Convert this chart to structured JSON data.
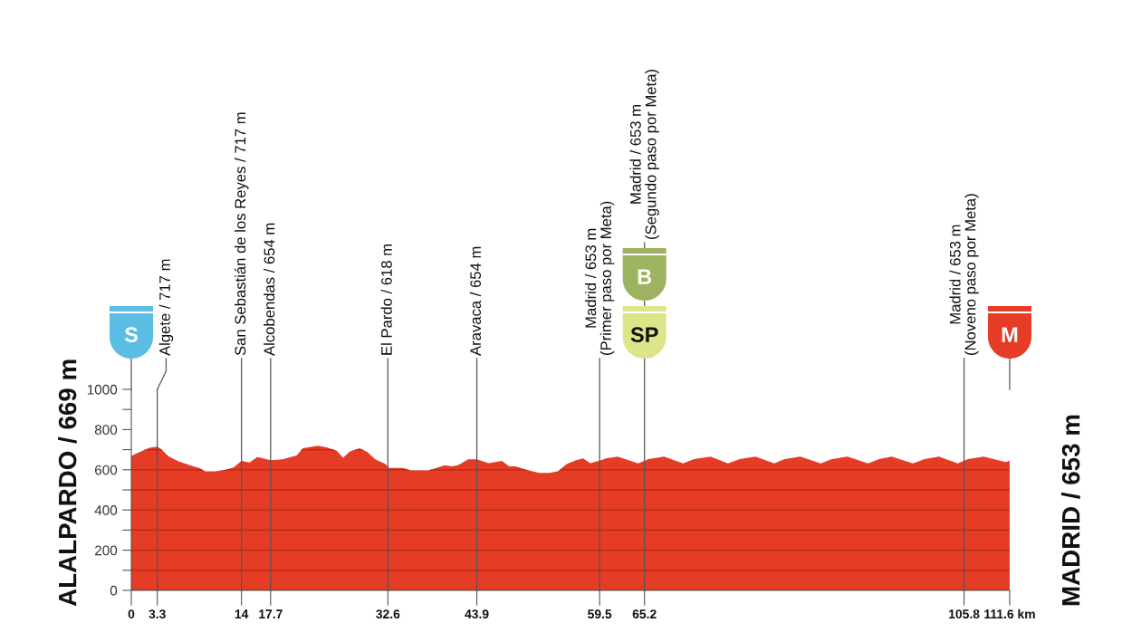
{
  "chart_data": {
    "type": "area",
    "color": "#e53c26",
    "x": [
      0,
      0.8,
      2.3,
      3.3,
      3.8,
      4.7,
      6.0,
      7.7,
      8.7,
      9.4,
      10.7,
      12.0,
      13.0,
      14.0,
      15.0,
      16.0,
      16.9,
      17.7,
      19.2,
      21.0,
      21.8,
      23.7,
      24.8,
      26.1,
      26.9,
      27.8,
      29.0,
      30.0,
      31.0,
      32.3,
      32.7,
      34.5,
      35.5,
      37.7,
      38.7,
      39.8,
      40.7,
      41.5,
      42.8,
      43.9,
      45.4,
      47.1,
      48.0,
      48.8,
      50.5,
      51.8,
      53.1,
      54.2,
      55.3,
      56.5,
      57.4,
      58.3,
      59.5,
      60.3,
      61.8,
      64.4,
      65.7,
      67.7,
      70.1,
      71.5,
      73.6,
      75.8,
      77.3,
      79.3,
      81.7,
      83.0,
      85.0,
      87.6,
      89.0,
      91.0,
      93.6,
      95.0,
      96.6,
      99.3,
      100.8,
      102.6,
      105.0,
      106.3,
      108.3,
      111.1,
      111.6
    ],
    "values": [
      669,
      684,
      710,
      715,
      703,
      668,
      642,
      619,
      608,
      592,
      592,
      600,
      612,
      644,
      636,
      663,
      655,
      647,
      652,
      671,
      707,
      720,
      712,
      695,
      660,
      691,
      707,
      688,
      652,
      628,
      609,
      609,
      597,
      597,
      608,
      623,
      617,
      623,
      652,
      652,
      633,
      644,
      617,
      617,
      597,
      585,
      584,
      592,
      628,
      647,
      657,
      633,
      645,
      657,
      665,
      632,
      653,
      665,
      632,
      653,
      665,
      632,
      653,
      665,
      632,
      653,
      665,
      632,
      653,
      665,
      632,
      653,
      665,
      632,
      653,
      665,
      632,
      653,
      665,
      638,
      645
    ],
    "xlim": [
      0,
      111.6
    ],
    "xticks": [
      0,
      3.3,
      14,
      17.7,
      32.6,
      43.9,
      59.5,
      65.2,
      105.8,
      {
        "value": 111.6,
        "label": "111.6 km"
      }
    ],
    "ylim": [
      0,
      1000
    ],
    "yticks": [
      0,
      {
        "value": 100,
        "label": null
      },
      200,
      {
        "value": 300,
        "label": null
      },
      400,
      {
        "value": 500,
        "label": null
      },
      600,
      {
        "value": 700,
        "label": null
      },
      800,
      {
        "value": 900,
        "label": null
      },
      1000
    ],
    "grid": "y",
    "ref_lines": [
      {
        "axis": "x",
        "value": 3.3,
        "label": "Algete / 717 m"
      },
      {
        "axis": "x",
        "value": 14,
        "label": "San Sebastián de los Reyes / 717 m"
      },
      {
        "axis": "x",
        "value": 17.7,
        "label": "Alcobendas / 654 m"
      },
      {
        "axis": "x",
        "value": 32.6,
        "label": "El Pardo / 618 m"
      },
      {
        "axis": "x",
        "value": 43.9,
        "label": "Aravaca / 654 m"
      },
      {
        "axis": "x",
        "value": 59.5,
        "label": "Madrid / 653 m\n(Primer paso por Meta)"
      },
      {
        "axis": "x",
        "value": 65.2,
        "label": "Madrid / 653 m\n(Segundo paso por Meta)"
      },
      {
        "axis": "x",
        "value": 105.8,
        "label": "Madrid / 653 m\n(Noveno paso por Meta)"
      }
    ],
    "annotations": [
      "ALALPARDO / 669 m",
      "MADRID / 653 m",
      "S",
      "SP",
      "B",
      "M"
    ]
  }
}
